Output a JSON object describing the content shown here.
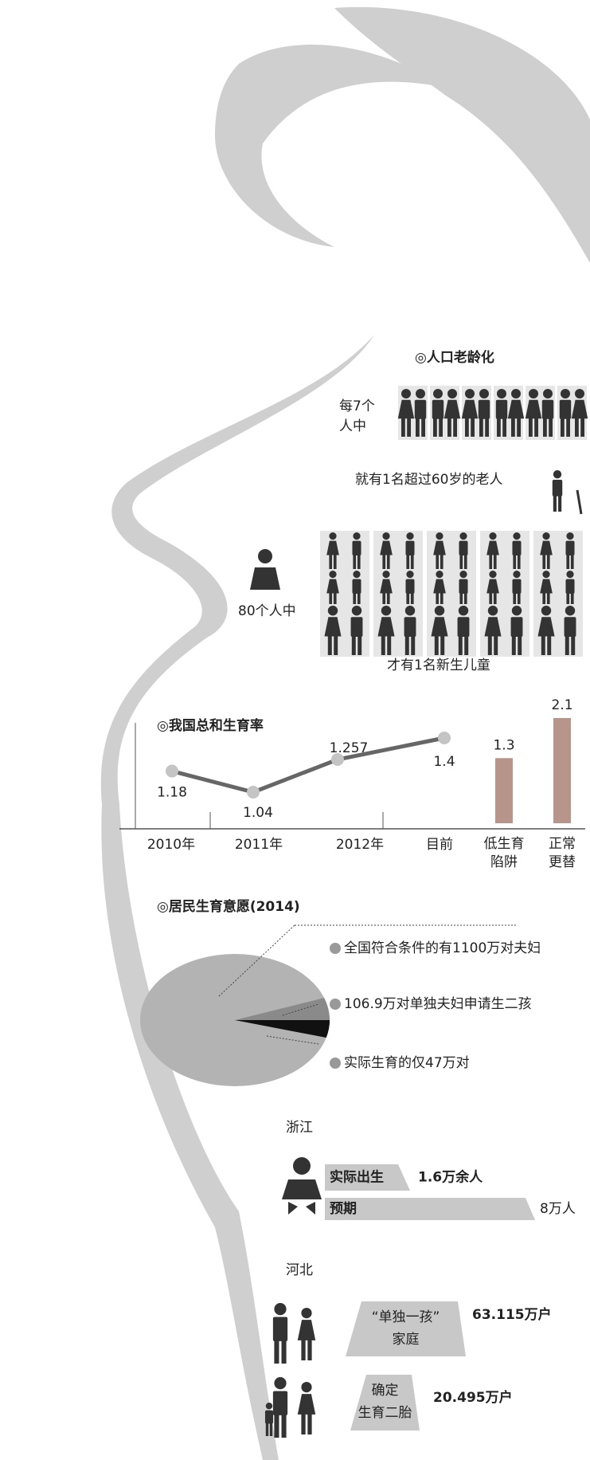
{
  "aging": {
    "title": "◎人口老龄化",
    "group1_lines": [
      "每7个",
      "人中"
    ],
    "elderly": "就有1名超过60岁的老人",
    "group2": "80个人中",
    "newborn": "才有1名新生儿童"
  },
  "chart_data": [
    {
      "type": "line",
      "title": "◎我国总和生育率",
      "categories": [
        "2010年",
        "2011年",
        "2012年",
        "目前"
      ],
      "values": [
        1.18,
        1.04,
        1.257,
        1.4
      ],
      "color": "#666666"
    },
    {
      "type": "bar",
      "categories": [
        "低生育陷阱",
        "正常更替"
      ],
      "values": [
        1.3,
        2.1
      ],
      "color": "#b8958a"
    },
    {
      "type": "pie",
      "title": "◎居民生育意愿(2014)",
      "categories": [
        "全国符合条件的有1100万对夫妇",
        "106.9万对单独夫妇申请生二孩",
        "实际生育的仅47万对"
      ],
      "values": [
        1100,
        106.9,
        47
      ],
      "colors": [
        "#b3b3b3",
        "#8a8a8a",
        "#111111"
      ]
    }
  ],
  "zhejiang": {
    "title": "浙江",
    "items": [
      {
        "label": "实际出生",
        "value": "1.6万余人"
      },
      {
        "label": "预期",
        "value": "8万人"
      }
    ]
  },
  "hebei": {
    "title": "河北",
    "items": [
      {
        "lines": [
          "“单独一孩”",
          "家庭"
        ],
        "value": "63.115万户"
      },
      {
        "lines": [
          "确定",
          "生育二胎"
        ],
        "value": "20.495万户"
      }
    ]
  }
}
